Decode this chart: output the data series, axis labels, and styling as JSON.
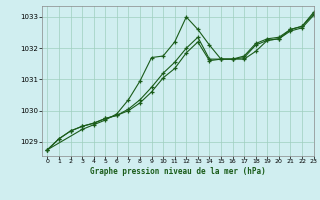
{
  "title": "Graphe pression niveau de la mer (hPa)",
  "xlim": [
    -0.5,
    23
  ],
  "ylim": [
    1028.55,
    1033.35
  ],
  "yticks": [
    1029,
    1030,
    1031,
    1032,
    1033
  ],
  "xticks": [
    0,
    1,
    2,
    3,
    4,
    5,
    6,
    7,
    8,
    9,
    10,
    11,
    12,
    13,
    14,
    15,
    16,
    17,
    18,
    19,
    20,
    21,
    22,
    23
  ],
  "background_color": "#d0eef0",
  "grid_color": "#9fcfbe",
  "line_color": "#1a5c1a",
  "series1_x": [
    0,
    1,
    2,
    3,
    4,
    5,
    6,
    7,
    8,
    9,
    10,
    11,
    12,
    13,
    14,
    15,
    16,
    17,
    18,
    19,
    20,
    21,
    22,
    23
  ],
  "series1_y": [
    1028.75,
    1029.1,
    1029.35,
    1029.5,
    1029.6,
    1029.75,
    1029.85,
    1030.0,
    1030.25,
    1030.6,
    1031.05,
    1031.35,
    1031.85,
    1032.2,
    1031.6,
    1031.65,
    1031.65,
    1031.7,
    1032.1,
    1032.25,
    1032.3,
    1032.55,
    1032.65,
    1033.05
  ],
  "series2_x": [
    0,
    1,
    2,
    3,
    4,
    5,
    6,
    7,
    8,
    9,
    10,
    11,
    12,
    13,
    14,
    15,
    16,
    17,
    18,
    19,
    20,
    21,
    22,
    23
  ],
  "series2_y": [
    1028.75,
    1029.1,
    1029.35,
    1029.5,
    1029.6,
    1029.75,
    1029.85,
    1030.05,
    1030.35,
    1030.75,
    1031.2,
    1031.55,
    1032.0,
    1032.35,
    1031.65,
    1031.65,
    1031.65,
    1031.75,
    1032.15,
    1032.3,
    1032.35,
    1032.6,
    1032.7,
    1033.1
  ],
  "series3_x": [
    0,
    3,
    4,
    5,
    6,
    7,
    8,
    9,
    10,
    11,
    12,
    13,
    14,
    15,
    16,
    17,
    18,
    19,
    20,
    21,
    22,
    23
  ],
  "series3_y": [
    1028.75,
    1029.4,
    1029.55,
    1029.7,
    1029.9,
    1030.35,
    1030.95,
    1031.7,
    1031.75,
    1032.2,
    1033.0,
    1032.6,
    1032.1,
    1031.65,
    1031.65,
    1031.65,
    1031.9,
    1032.25,
    1032.3,
    1032.6,
    1032.7,
    1033.15
  ]
}
